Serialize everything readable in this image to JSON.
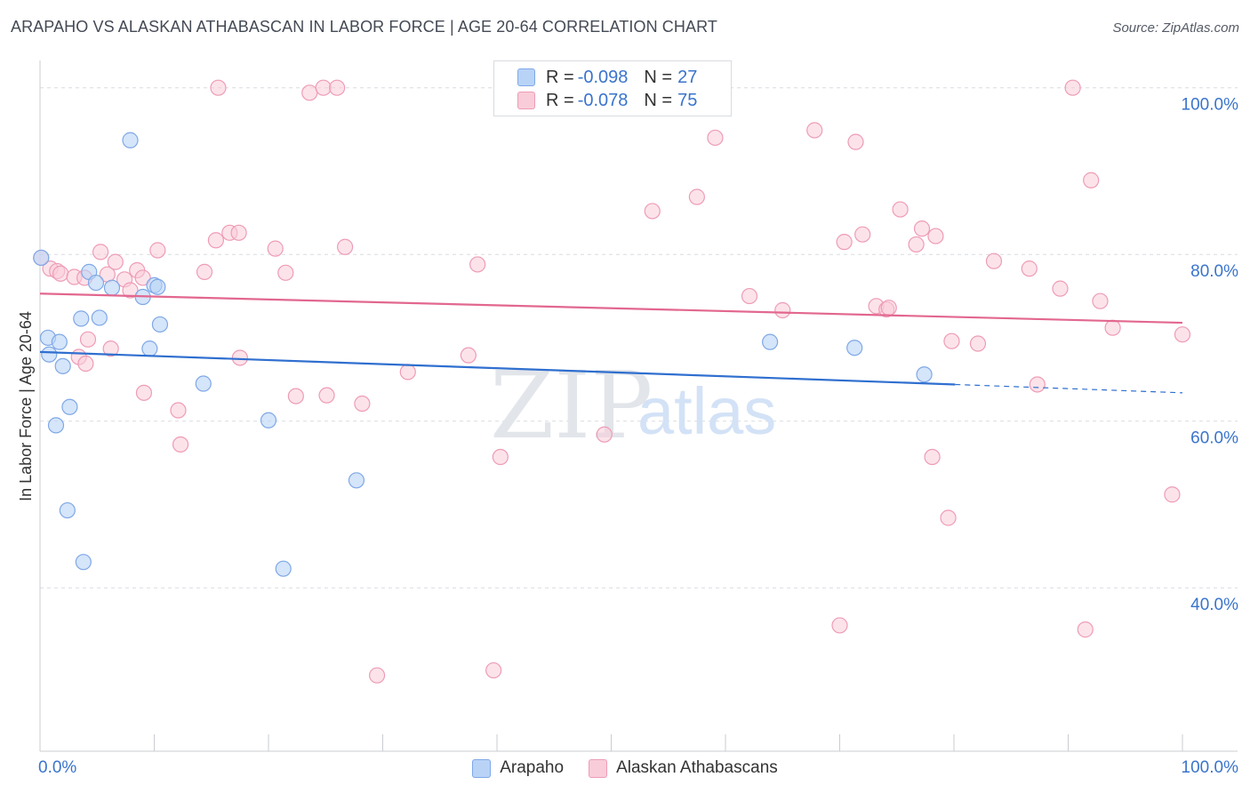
{
  "title": "ARAPAHO VS ALASKAN ATHABASCAN IN LABOR FORCE | AGE 20-64 CORRELATION CHART",
  "source": "Source: ZipAtlas.com",
  "watermark": {
    "zip": "ZIP",
    "atlas": "atlas"
  },
  "colors": {
    "blue_fill": "#b9d3f7",
    "blue_stroke": "#7fa8e6",
    "blue_line": "#2f6fcf",
    "pink_fill": "#f9ccd9",
    "pink_stroke": "#ee9cb6",
    "pink_line": "#e2678f",
    "axis_label": "#3a74cc",
    "grid": "#d9dce1"
  },
  "legend": {
    "rows": [
      {
        "r_label": "R =",
        "r_value": "-0.098",
        "n_label": "N =",
        "n_value": "27"
      },
      {
        "r_label": "R =",
        "r_value": "-0.078",
        "n_label": "N =",
        "n_value": "75"
      }
    ]
  },
  "bottom_legend": {
    "series1": "Arapaho",
    "series2": "Alaskan Athabascans"
  },
  "chart_data": {
    "type": "scatter",
    "title": "ARAPAHO VS ALASKAN ATHABASCAN IN LABOR FORCE | AGE 20-64 CORRELATION CHART",
    "xlabel": "",
    "ylabel": "In Labor Force | Age 20-64",
    "xlim": [
      0,
      100
    ],
    "ylim": [
      20.4,
      102.1
    ],
    "x_tick_labels": {
      "left": "0.0%",
      "right": "100.0%"
    },
    "y_ticks": [
      {
        "value": 100,
        "label": "100.0%"
      },
      {
        "value": 80,
        "label": "80.0%"
      },
      {
        "value": 60,
        "label": "60.0%"
      },
      {
        "value": 40,
        "label": "40.0%"
      }
    ],
    "grid": true,
    "series": [
      {
        "name": "Arapaho",
        "r": -0.098,
        "n": 27,
        "trend": {
          "x0": 0,
          "y0": 68.3,
          "x1": 80.1,
          "y1": 64.4,
          "dash_to_x": 100,
          "dash_to_y": 63.4
        },
        "points": [
          [
            0.1,
            79.6
          ],
          [
            0.7,
            70.0
          ],
          [
            0.8,
            68.0
          ],
          [
            1.7,
            69.5
          ],
          [
            2.0,
            66.6
          ],
          [
            1.4,
            59.5
          ],
          [
            2.6,
            61.7
          ],
          [
            2.4,
            49.3
          ],
          [
            3.8,
            43.1
          ],
          [
            3.6,
            72.3
          ],
          [
            4.3,
            77.9
          ],
          [
            4.9,
            76.6
          ],
          [
            5.2,
            72.4
          ],
          [
            6.3,
            76.0
          ],
          [
            7.9,
            93.7
          ],
          [
            9.0,
            74.9
          ],
          [
            9.6,
            68.7
          ],
          [
            10.0,
            76.3
          ],
          [
            10.3,
            76.1
          ],
          [
            10.5,
            71.6
          ],
          [
            14.3,
            64.5
          ],
          [
            20.0,
            60.1
          ],
          [
            21.3,
            42.3
          ],
          [
            27.7,
            52.9
          ],
          [
            63.9,
            69.5
          ],
          [
            71.3,
            68.8
          ],
          [
            77.4,
            65.6
          ]
        ]
      },
      {
        "name": "Alaskan Athabascans",
        "r": -0.078,
        "n": 75,
        "trend": {
          "x0": 0,
          "y0": 75.3,
          "x1": 100,
          "y1": 71.8
        },
        "points": [
          [
            0.1,
            79.6
          ],
          [
            0.9,
            78.3
          ],
          [
            1.5,
            78.0
          ],
          [
            1.8,
            77.7
          ],
          [
            3.0,
            77.3
          ],
          [
            3.4,
            67.7
          ],
          [
            3.9,
            77.2
          ],
          [
            4.0,
            66.9
          ],
          [
            4.2,
            69.8
          ],
          [
            5.3,
            80.3
          ],
          [
            5.9,
            77.6
          ],
          [
            6.2,
            68.7
          ],
          [
            6.6,
            79.1
          ],
          [
            7.4,
            77.0
          ],
          [
            7.9,
            75.7
          ],
          [
            8.5,
            78.1
          ],
          [
            9.0,
            77.2
          ],
          [
            9.1,
            63.4
          ],
          [
            10.3,
            80.5
          ],
          [
            12.1,
            61.3
          ],
          [
            12.3,
            57.2
          ],
          [
            14.4,
            77.9
          ],
          [
            15.4,
            81.7
          ],
          [
            15.6,
            100.0
          ],
          [
            16.6,
            82.6
          ],
          [
            17.4,
            82.6
          ],
          [
            17.5,
            67.6
          ],
          [
            20.6,
            80.7
          ],
          [
            21.5,
            77.8
          ],
          [
            22.4,
            63.0
          ],
          [
            23.6,
            99.4
          ],
          [
            24.8,
            100.0
          ],
          [
            25.1,
            63.1
          ],
          [
            26.0,
            100.0
          ],
          [
            26.7,
            80.9
          ],
          [
            28.2,
            62.1
          ],
          [
            29.5,
            29.5
          ],
          [
            32.2,
            65.9
          ],
          [
            37.5,
            67.9
          ],
          [
            38.3,
            78.8
          ],
          [
            39.7,
            30.1
          ],
          [
            40.3,
            55.7
          ],
          [
            49.4,
            58.4
          ],
          [
            53.6,
            85.2
          ],
          [
            57.5,
            86.9
          ],
          [
            59.1,
            94.0
          ],
          [
            62.1,
            75.0
          ],
          [
            65.0,
            73.3
          ],
          [
            67.8,
            94.9
          ],
          [
            70.0,
            35.5
          ],
          [
            70.4,
            81.5
          ],
          [
            71.4,
            93.5
          ],
          [
            72.0,
            82.4
          ],
          [
            73.2,
            73.8
          ],
          [
            74.1,
            73.4
          ],
          [
            74.3,
            73.6
          ],
          [
            75.3,
            85.4
          ],
          [
            76.7,
            81.2
          ],
          [
            77.2,
            83.1
          ],
          [
            78.4,
            82.2
          ],
          [
            78.1,
            55.7
          ],
          [
            79.5,
            48.4
          ],
          [
            79.8,
            69.6
          ],
          [
            82.1,
            69.3
          ],
          [
            83.5,
            79.2
          ],
          [
            86.6,
            78.3
          ],
          [
            87.3,
            64.4
          ],
          [
            89.3,
            75.9
          ],
          [
            90.4,
            100.0
          ],
          [
            91.5,
            35.0
          ],
          [
            92.0,
            88.9
          ],
          [
            92.8,
            74.4
          ],
          [
            93.9,
            71.2
          ],
          [
            99.1,
            51.2
          ],
          [
            100.0,
            70.4
          ]
        ]
      }
    ]
  }
}
